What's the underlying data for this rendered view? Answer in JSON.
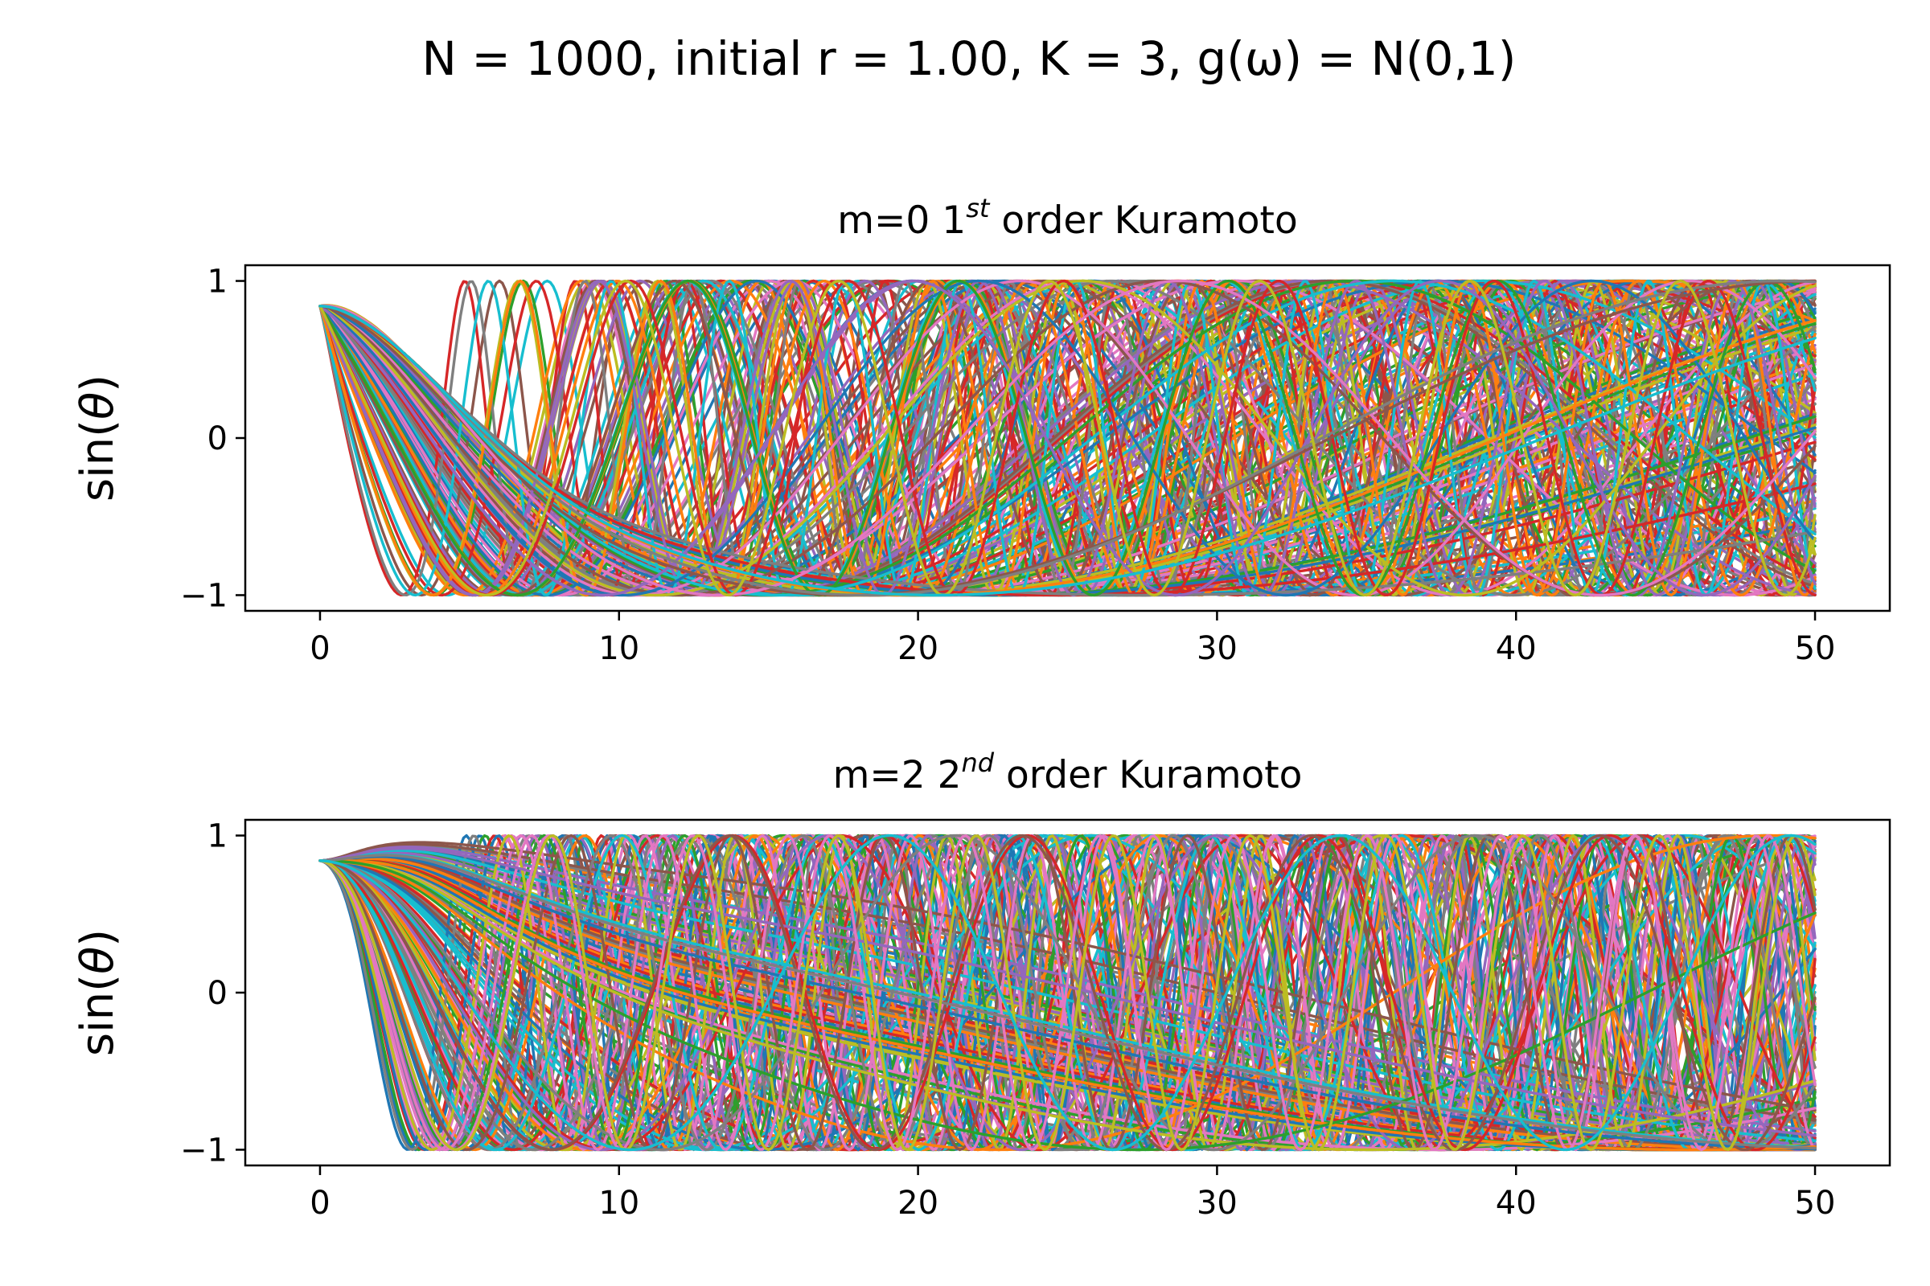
{
  "figure": {
    "suptitle": "N = 1000, initial r = 1.00, K = 3, g(ω) = N(0,1)"
  },
  "palette": [
    "#1f77b4",
    "#ff7f0e",
    "#2ca02c",
    "#d62728",
    "#9467bd",
    "#8c564b",
    "#e377c2",
    "#7f7f7f",
    "#bcbd22",
    "#17becf"
  ],
  "chart_data": [
    {
      "type": "line",
      "title_main": "m=0 1",
      "title_sup": "st",
      "title_rest": " order Kuramoto",
      "ylabel_pre": "sin(",
      "ylabel_sym": "θ",
      "ylabel_post": ")",
      "xlim": [
        -2.5,
        52.5
      ],
      "ylim": [
        -1.1,
        1.1
      ],
      "xticks": [
        0,
        10,
        20,
        30,
        40,
        50
      ],
      "yticks": [
        -1,
        0,
        1
      ],
      "ytick_labels": [
        "−1",
        "0",
        "1"
      ],
      "x_range": [
        0,
        50
      ],
      "initial_value": 0.84,
      "curves_depicted": 200,
      "grid": false
    },
    {
      "type": "line",
      "title_main": "m=2 2",
      "title_sup": "nd",
      "title_rest": " order Kuramoto",
      "ylabel_pre": "sin(",
      "ylabel_sym": "θ",
      "ylabel_post": ")",
      "xlim": [
        -2.5,
        52.5
      ],
      "ylim": [
        -1.1,
        1.1
      ],
      "xticks": [
        0,
        10,
        20,
        30,
        40,
        50
      ],
      "yticks": [
        -1,
        0,
        1
      ],
      "ytick_labels": [
        "−1",
        "0",
        "1"
      ],
      "x_range": [
        0,
        50
      ],
      "initial_value": 0.84,
      "curves_depicted": 200,
      "grid": false
    }
  ]
}
